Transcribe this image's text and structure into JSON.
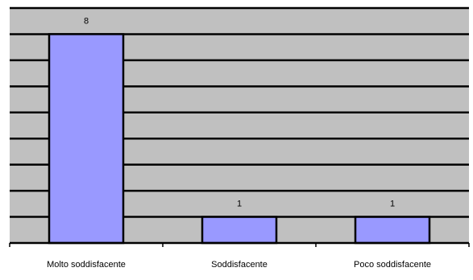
{
  "chart_data": {
    "type": "bar",
    "categories": [
      "Molto soddisfacente",
      "Soddisfacente",
      "Poco soddisfacente"
    ],
    "values": [
      8,
      1,
      1
    ],
    "data_labels": [
      "8",
      "1",
      "1"
    ],
    "ylim": [
      0,
      9
    ],
    "grid": true,
    "legend": "none",
    "title": "",
    "xlabel": "",
    "ylabel": ""
  },
  "colors": {
    "plot_background": "#c0c0c0",
    "bar_fill": "#9999ff",
    "bar_stroke": "#000000",
    "gridline": "#000000"
  }
}
